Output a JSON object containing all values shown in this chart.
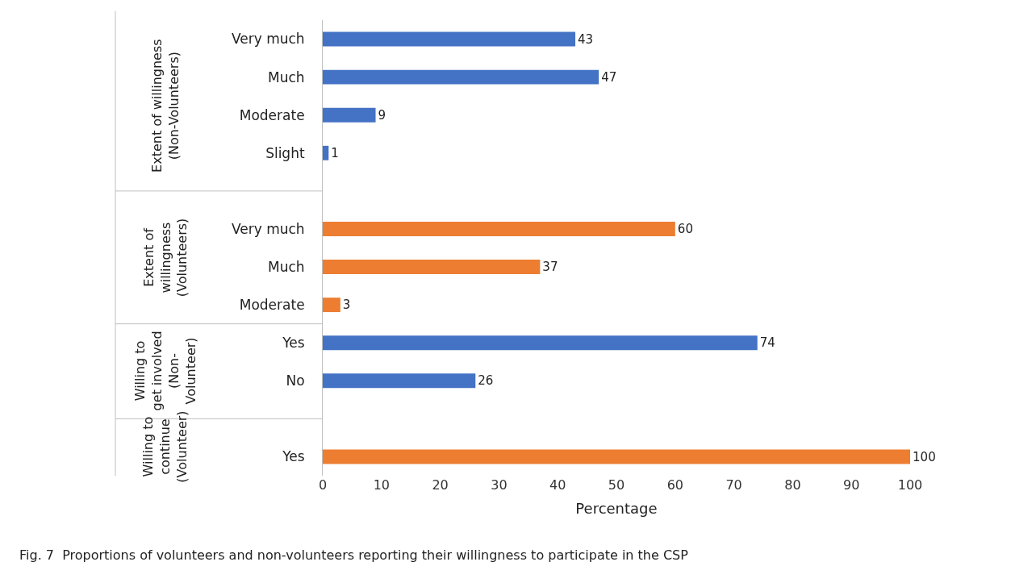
{
  "chart_data": {
    "type": "bar",
    "orientation": "horizontal",
    "categories": [
      "Very much",
      "Much",
      "Moderate",
      "Slight",
      null,
      "Very much",
      "Much",
      "Moderate",
      "Yes",
      "No",
      null,
      "Yes"
    ],
    "series": [
      {
        "color": "#4472c4",
        "values": [
          43,
          47,
          9,
          1,
          null,
          null,
          null,
          null,
          null,
          null,
          null,
          null
        ]
      },
      {
        "color": "#ed7d31",
        "values": [
          null,
          null,
          null,
          null,
          null,
          60,
          37,
          3,
          null,
          null,
          null,
          null
        ]
      },
      {
        "color": "#4472c4",
        "values": [
          null,
          null,
          null,
          null,
          null,
          null,
          null,
          null,
          74,
          26,
          null,
          null
        ]
      },
      {
        "color": "#ed7d31",
        "values": [
          null,
          null,
          null,
          null,
          null,
          null,
          null,
          null,
          null,
          null,
          null,
          100
        ]
      }
    ],
    "xlabel": "Percentage",
    "xlim": [
      0,
      100
    ],
    "xticks": [
      0,
      10,
      20,
      30,
      40,
      50,
      60,
      70,
      80,
      90,
      100
    ],
    "data_labels": true,
    "grid": false,
    "legend": false,
    "annotations": [
      "Extent of willingness (Non-Volunteers)",
      "Extent of willingness (Volunteers)",
      "Willing to get involved (Non-Volunteer)",
      "Willing to continue (Volunteer)",
      "Fig. 7  Proportions of volunteers and non-volunteers reporting their willingness to participate in the CSP"
    ]
  }
}
